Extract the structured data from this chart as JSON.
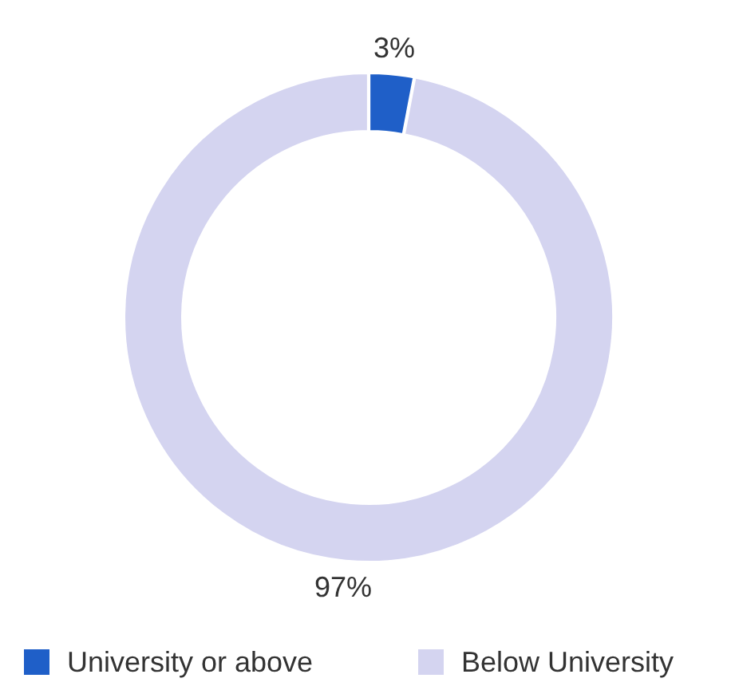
{
  "chart_data": {
    "type": "donut",
    "categories": [
      "University or above",
      "Below University"
    ],
    "values": [
      3,
      97
    ],
    "colors": [
      "#1f5fc8",
      "#d4d4f0"
    ],
    "value_labels": [
      "3%",
      "97%"
    ],
    "legend": "bottom"
  }
}
